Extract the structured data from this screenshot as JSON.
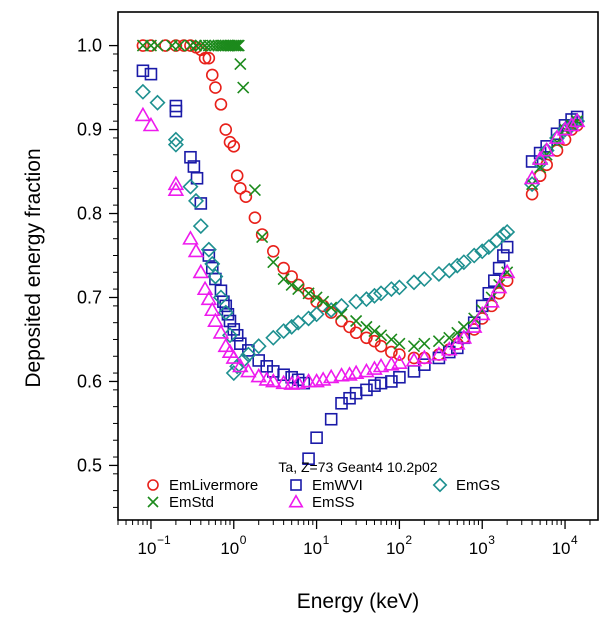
{
  "chart_data": {
    "type": "scatter",
    "xlabel": "Energy (keV)",
    "ylabel": "Deposited energy fraction",
    "xscale": "log",
    "xlim": [
      0.04,
      25000
    ],
    "ylim": [
      0.435,
      1.04
    ],
    "x_ticks": [
      {
        "value": 0.1,
        "base": "10",
        "exp": "−1"
      },
      {
        "value": 1,
        "base": "10",
        "exp": "0"
      },
      {
        "value": 10,
        "base": "10",
        "exp": "1"
      },
      {
        "value": 100,
        "base": "10",
        "exp": "2"
      },
      {
        "value": 1000,
        "base": "10",
        "exp": "3"
      },
      {
        "value": 10000,
        "base": "10",
        "exp": "4"
      }
    ],
    "y_ticks": [
      {
        "value": 0.5,
        "label": "0.5"
      },
      {
        "value": 0.6,
        "label": "0.6"
      },
      {
        "value": 0.7,
        "label": "0.7"
      },
      {
        "value": 0.8,
        "label": "0.8"
      },
      {
        "value": 0.9,
        "label": "0.9"
      },
      {
        "value": 1.0,
        "label": "1.0"
      }
    ],
    "grid": false,
    "legend_position": "bottom-left",
    "annotation": "Ta, Z=73 Geant4 10.2p02",
    "series": [
      {
        "name": "EmLivermore",
        "marker": "circle",
        "color": "#e8201a",
        "points": [
          [
            0.08,
            1.0
          ],
          [
            0.1,
            1.0
          ],
          [
            0.15,
            1.0
          ],
          [
            0.2,
            1.0
          ],
          [
            0.25,
            1.0
          ],
          [
            0.3,
            1.0
          ],
          [
            0.35,
            0.998
          ],
          [
            0.4,
            0.995
          ],
          [
            0.45,
            0.985
          ],
          [
            0.5,
            0.985
          ],
          [
            0.55,
            0.965
          ],
          [
            0.6,
            0.95
          ],
          [
            0.7,
            0.93
          ],
          [
            0.8,
            0.9
          ],
          [
            0.9,
            0.885
          ],
          [
            1.0,
            0.88
          ],
          [
            1.1,
            0.845
          ],
          [
            1.2,
            0.83
          ],
          [
            1.4,
            0.82
          ],
          [
            1.8,
            0.795
          ],
          [
            2.2,
            0.775
          ],
          [
            3,
            0.755
          ],
          [
            4,
            0.735
          ],
          [
            5,
            0.725
          ],
          [
            6,
            0.715
          ],
          [
            8,
            0.705
          ],
          [
            10,
            0.695
          ],
          [
            12,
            0.69
          ],
          [
            15,
            0.682
          ],
          [
            20,
            0.672
          ],
          [
            25,
            0.665
          ],
          [
            30,
            0.658
          ],
          [
            40,
            0.652
          ],
          [
            50,
            0.648
          ],
          [
            60,
            0.642
          ],
          [
            80,
            0.635
          ],
          [
            100,
            0.632
          ],
          [
            150,
            0.628
          ],
          [
            200,
            0.628
          ],
          [
            300,
            0.632
          ],
          [
            400,
            0.638
          ],
          [
            500,
            0.645
          ],
          [
            600,
            0.652
          ],
          [
            800,
            0.662
          ],
          [
            1000,
            0.675
          ],
          [
            1300,
            0.69
          ],
          [
            1600,
            0.705
          ],
          [
            2000,
            0.72
          ],
          [
            4000,
            0.823
          ],
          [
            5000,
            0.845
          ],
          [
            6000,
            0.858
          ],
          [
            8000,
            0.875
          ],
          [
            10000,
            0.888
          ],
          [
            12000,
            0.9
          ],
          [
            14000,
            0.905
          ]
        ]
      },
      {
        "name": "EmWVI",
        "marker": "square",
        "color": "#1a1aa8",
        "points": [
          [
            0.08,
            0.97
          ],
          [
            0.1,
            0.966
          ],
          [
            0.2,
            0.928
          ],
          [
            0.2,
            0.922
          ],
          [
            0.3,
            0.867
          ],
          [
            0.33,
            0.856
          ],
          [
            0.36,
            0.842
          ],
          [
            0.4,
            0.812
          ],
          [
            0.5,
            0.75
          ],
          [
            0.55,
            0.735
          ],
          [
            0.6,
            0.722
          ],
          [
            0.7,
            0.708
          ],
          [
            0.75,
            0.695
          ],
          [
            0.8,
            0.69
          ],
          [
            0.85,
            0.68
          ],
          [
            0.9,
            0.672
          ],
          [
            1.0,
            0.662
          ],
          [
            1.1,
            0.655
          ],
          [
            1.2,
            0.645
          ],
          [
            1.5,
            0.637
          ],
          [
            2.0,
            0.625
          ],
          [
            2.5,
            0.618
          ],
          [
            3,
            0.612
          ],
          [
            4,
            0.608
          ],
          [
            5,
            0.605
          ],
          [
            6,
            0.602
          ],
          [
            7,
            0.598
          ],
          [
            8,
            0.508
          ],
          [
            10,
            0.533
          ],
          [
            15,
            0.555
          ],
          [
            20,
            0.574
          ],
          [
            25,
            0.58
          ],
          [
            30,
            0.586
          ],
          [
            40,
            0.59
          ],
          [
            50,
            0.595
          ],
          [
            60,
            0.598
          ],
          [
            80,
            0.6
          ],
          [
            100,
            0.605
          ],
          [
            150,
            0.612
          ],
          [
            200,
            0.62
          ],
          [
            300,
            0.628
          ],
          [
            400,
            0.635
          ],
          [
            500,
            0.64
          ],
          [
            600,
            0.652
          ],
          [
            800,
            0.67
          ],
          [
            1000,
            0.69
          ],
          [
            1200,
            0.705
          ],
          [
            1400,
            0.72
          ],
          [
            1600,
            0.735
          ],
          [
            1800,
            0.75
          ],
          [
            2000,
            0.76
          ],
          [
            4000,
            0.862
          ],
          [
            5000,
            0.872
          ],
          [
            6000,
            0.88
          ],
          [
            8000,
            0.895
          ],
          [
            10000,
            0.905
          ],
          [
            12000,
            0.912
          ],
          [
            14000,
            0.915
          ]
        ]
      },
      {
        "name": "EmGS",
        "marker": "diamond",
        "color": "#1e9090",
        "points": [
          [
            0.08,
            0.945
          ],
          [
            0.12,
            0.932
          ],
          [
            0.2,
            0.888
          ],
          [
            0.2,
            0.882
          ],
          [
            0.3,
            0.832
          ],
          [
            0.35,
            0.815
          ],
          [
            0.4,
            0.785
          ],
          [
            0.5,
            0.757
          ],
          [
            0.55,
            0.74
          ],
          [
            0.6,
            0.725
          ],
          [
            0.7,
            0.7
          ],
          [
            0.8,
            0.682
          ],
          [
            0.9,
            0.655
          ],
          [
            1.0,
            0.61
          ],
          [
            1.1,
            0.618
          ],
          [
            1.3,
            0.625
          ],
          [
            1.5,
            0.632
          ],
          [
            2,
            0.642
          ],
          [
            3,
            0.652
          ],
          [
            4,
            0.66
          ],
          [
            5,
            0.665
          ],
          [
            6,
            0.67
          ],
          [
            8,
            0.675
          ],
          [
            10,
            0.68
          ],
          [
            15,
            0.685
          ],
          [
            20,
            0.69
          ],
          [
            30,
            0.695
          ],
          [
            40,
            0.698
          ],
          [
            50,
            0.702
          ],
          [
            60,
            0.705
          ],
          [
            80,
            0.71
          ],
          [
            100,
            0.712
          ],
          [
            150,
            0.718
          ],
          [
            200,
            0.722
          ],
          [
            300,
            0.728
          ],
          [
            400,
            0.732
          ],
          [
            500,
            0.738
          ],
          [
            600,
            0.742
          ],
          [
            800,
            0.75
          ],
          [
            1000,
            0.755
          ],
          [
            1200,
            0.76
          ],
          [
            1500,
            0.768
          ],
          [
            1800,
            0.775
          ],
          [
            2000,
            0.778
          ],
          [
            4000,
            0.835
          ],
          [
            5000,
            0.86
          ],
          [
            6000,
            0.875
          ],
          [
            8000,
            0.89
          ],
          [
            10000,
            0.9
          ],
          [
            12000,
            0.905
          ],
          [
            14000,
            0.91
          ]
        ]
      },
      {
        "name": "EmStd",
        "marker": "x",
        "color": "#1c8a1c",
        "points": [
          [
            0.08,
            1.0
          ],
          [
            0.1,
            1.0
          ],
          [
            0.12,
            1.0
          ],
          [
            0.18,
            1.0
          ],
          [
            0.22,
            1.0
          ],
          [
            0.3,
            1.0
          ],
          [
            0.35,
            1.0
          ],
          [
            0.4,
            1.0
          ],
          [
            0.45,
            1.0
          ],
          [
            0.5,
            1.0
          ],
          [
            0.55,
            1.0
          ],
          [
            0.6,
            1.0
          ],
          [
            0.65,
            1.0
          ],
          [
            0.7,
            1.0
          ],
          [
            0.75,
            1.0
          ],
          [
            0.8,
            1.0
          ],
          [
            0.85,
            1.0
          ],
          [
            0.9,
            1.0
          ],
          [
            0.95,
            1.0
          ],
          [
            1.0,
            1.0
          ],
          [
            1.05,
            1.0
          ],
          [
            1.1,
            1.0
          ],
          [
            1.15,
            1.0
          ],
          [
            1.2,
            0.978
          ],
          [
            1.3,
            0.95
          ],
          [
            1.8,
            0.828
          ],
          [
            2.2,
            0.772
          ],
          [
            3,
            0.742
          ],
          [
            4,
            0.722
          ],
          [
            5,
            0.715
          ],
          [
            6,
            0.71
          ],
          [
            8,
            0.705
          ],
          [
            10,
            0.7
          ],
          [
            12,
            0.695
          ],
          [
            15,
            0.688
          ],
          [
            20,
            0.68
          ],
          [
            30,
            0.672
          ],
          [
            40,
            0.665
          ],
          [
            50,
            0.66
          ],
          [
            60,
            0.655
          ],
          [
            80,
            0.65
          ],
          [
            100,
            0.645
          ],
          [
            150,
            0.642
          ],
          [
            200,
            0.645
          ],
          [
            300,
            0.648
          ],
          [
            400,
            0.652
          ],
          [
            500,
            0.658
          ],
          [
            600,
            0.665
          ],
          [
            800,
            0.675
          ],
          [
            1000,
            0.685
          ],
          [
            1300,
            0.7
          ],
          [
            1600,
            0.715
          ],
          [
            2000,
            0.73
          ],
          [
            4000,
            0.835
          ],
          [
            5000,
            0.855
          ],
          [
            6000,
            0.87
          ],
          [
            8000,
            0.885
          ],
          [
            10000,
            0.9
          ],
          [
            12000,
            0.905
          ],
          [
            14000,
            0.91
          ]
        ]
      },
      {
        "name": "EmSS",
        "marker": "triangle",
        "color": "#ee1aee",
        "points": [
          [
            0.08,
            0.917
          ],
          [
            0.1,
            0.905
          ],
          [
            0.2,
            0.835
          ],
          [
            0.2,
            0.828
          ],
          [
            0.3,
            0.77
          ],
          [
            0.35,
            0.755
          ],
          [
            0.4,
            0.73
          ],
          [
            0.45,
            0.71
          ],
          [
            0.5,
            0.698
          ],
          [
            0.55,
            0.685
          ],
          [
            0.6,
            0.672
          ],
          [
            0.7,
            0.658
          ],
          [
            0.8,
            0.642
          ],
          [
            0.9,
            0.635
          ],
          [
            1.0,
            0.628
          ],
          [
            1.2,
            0.618
          ],
          [
            1.5,
            0.612
          ],
          [
            2,
            0.606
          ],
          [
            2.5,
            0.602
          ],
          [
            3,
            0.6
          ],
          [
            4,
            0.598
          ],
          [
            5,
            0.597
          ],
          [
            6,
            0.598
          ],
          [
            8,
            0.6
          ],
          [
            10,
            0.6
          ],
          [
            12,
            0.602
          ],
          [
            15,
            0.605
          ],
          [
            20,
            0.607
          ],
          [
            25,
            0.608
          ],
          [
            30,
            0.61
          ],
          [
            40,
            0.612
          ],
          [
            50,
            0.615
          ],
          [
            60,
            0.618
          ],
          [
            80,
            0.62
          ],
          [
            100,
            0.622
          ],
          [
            150,
            0.625
          ],
          [
            200,
            0.628
          ],
          [
            300,
            0.632
          ],
          [
            400,
            0.638
          ],
          [
            500,
            0.645
          ],
          [
            600,
            0.652
          ],
          [
            800,
            0.665
          ],
          [
            1000,
            0.68
          ],
          [
            1300,
            0.695
          ],
          [
            1600,
            0.712
          ],
          [
            2000,
            0.73
          ],
          [
            4000,
            0.842
          ],
          [
            5000,
            0.865
          ],
          [
            6000,
            0.875
          ],
          [
            8000,
            0.89
          ],
          [
            10000,
            0.9
          ],
          [
            12000,
            0.905
          ],
          [
            14000,
            0.91
          ]
        ]
      }
    ]
  }
}
